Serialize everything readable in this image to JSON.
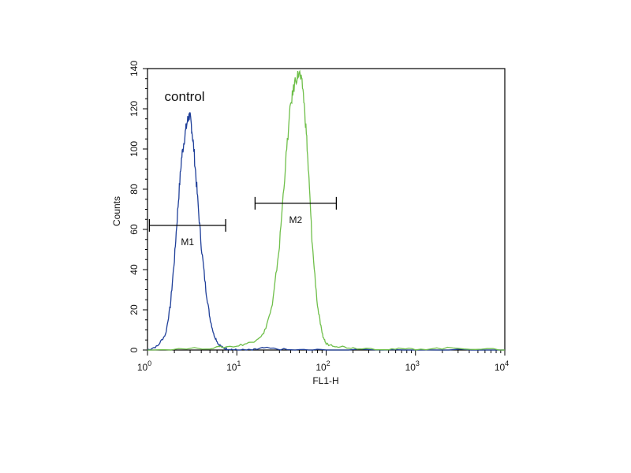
{
  "chart_data": {
    "type": "line",
    "title": "",
    "xlabel": "FL1-H",
    "ylabel": "Counts",
    "x_scale": "log",
    "xlim": [
      1,
      10000
    ],
    "ylim": [
      0,
      140
    ],
    "x_ticks": [
      {
        "base": "10",
        "exp": "0",
        "value": 1
      },
      {
        "base": "10",
        "exp": "1",
        "value": 10
      },
      {
        "base": "10",
        "exp": "2",
        "value": 100
      },
      {
        "base": "10",
        "exp": "3",
        "value": 1000
      },
      {
        "base": "10",
        "exp": "4",
        "value": 10000
      }
    ],
    "y_ticks": [
      "0",
      "20",
      "40",
      "60",
      "80",
      "100",
      "120",
      "140"
    ],
    "y_tick_values": [
      0,
      20,
      40,
      60,
      80,
      100,
      120,
      140
    ],
    "grid": false,
    "annotations": [
      {
        "text": "control",
        "x": 1.55,
        "y": 124
      }
    ],
    "markers": [
      {
        "label": "M1",
        "x_start": 1.05,
        "x_end": 7.5,
        "y": 62
      },
      {
        "label": "M2",
        "x_start": 16,
        "x_end": 130,
        "y": 73
      }
    ],
    "series": [
      {
        "color": "#1f3f99",
        "x": [
          1.0,
          1.3,
          1.6,
          1.8,
          2.0,
          2.2,
          2.4,
          2.6,
          2.8,
          2.95,
          3.1,
          3.3,
          3.6,
          4.0,
          4.5,
          5.0,
          5.5,
          6.2,
          7.0,
          8.0,
          10,
          15,
          20,
          40,
          100,
          1000,
          10000
        ],
        "values": [
          0,
          2,
          8,
          22,
          45,
          72,
          95,
          106,
          114,
          117,
          112,
          100,
          78,
          52,
          30,
          16,
          8,
          3,
          1,
          0.5,
          0,
          0,
          1,
          0,
          0,
          0,
          0
        ]
      },
      {
        "color": "#6fbf4a",
        "x": [
          1.0,
          5,
          10,
          15,
          20,
          25,
          30,
          35,
          40,
          45,
          50,
          55,
          60,
          65,
          70,
          80,
          90,
          100,
          130,
          200,
          500,
          1000,
          3000,
          10000
        ],
        "values": [
          0,
          1,
          2,
          4,
          8,
          22,
          52,
          92,
          122,
          134,
          138,
          130,
          108,
          80,
          52,
          22,
          8,
          3,
          2,
          1,
          0.5,
          0.5,
          1,
          0
        ]
      }
    ]
  }
}
